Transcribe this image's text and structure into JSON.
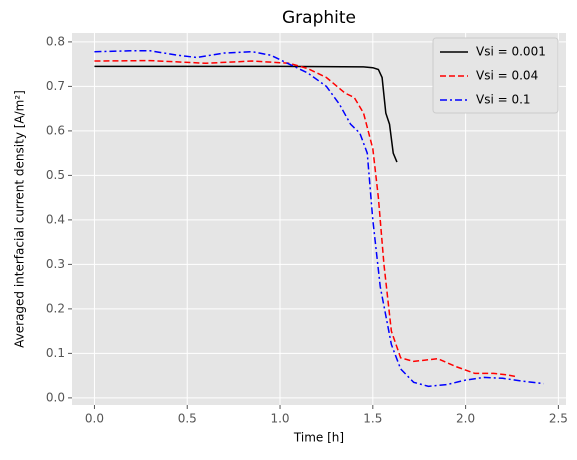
{
  "chart_data": {
    "type": "line",
    "title": "Graphite",
    "x_label": "Time [h]",
    "y_label": "Averaged interfacial current density [A/m²]",
    "xlim": [
      -0.121,
      2.541
    ],
    "ylim": [
      -0.016,
      0.82
    ],
    "xticks": [
      {
        "value": 0,
        "label": "0.0"
      },
      0.5,
      {
        "value": 1,
        "label": "1.0"
      },
      1.5,
      {
        "value": 2,
        "label": "2.0"
      },
      2.5
    ],
    "yticks": [
      {
        "value": 0,
        "label": "0.0"
      },
      0.1,
      0.2,
      0.3,
      0.4,
      0.5,
      0.6,
      0.7,
      0.8
    ],
    "grid": true,
    "legend": "upper right",
    "series": [
      {
        "name": "Vsi = 0.001",
        "color": "#000000",
        "dash": "solid",
        "x": [
          0,
          0.5,
          1.0,
          1.45,
          1.5,
          1.53,
          1.55,
          1.56,
          1.57,
          1.59,
          1.61,
          1.63
        ],
        "values": [
          0.745,
          0.745,
          0.745,
          0.744,
          0.742,
          0.738,
          0.72,
          0.68,
          0.64,
          0.615,
          0.55,
          0.53
        ]
      },
      {
        "name": "Vsi = 0.04",
        "color": "#ff0000",
        "dash": "dashed",
        "x": [
          0,
          0.3,
          0.6,
          0.85,
          1.05,
          1.15,
          1.25,
          1.35,
          1.4,
          1.45,
          1.5,
          1.53,
          1.56,
          1.6,
          1.65,
          1.72,
          1.85,
          1.95,
          2.05,
          2.15,
          2.22,
          2.27
        ],
        "values": [
          0.757,
          0.758,
          0.752,
          0.757,
          0.752,
          0.74,
          0.72,
          0.685,
          0.675,
          0.64,
          0.56,
          0.45,
          0.3,
          0.15,
          0.09,
          0.082,
          0.088,
          0.07,
          0.055,
          0.055,
          0.052,
          0.048
        ]
      },
      {
        "name": "Vsi = 0.1",
        "color": "#0000ff",
        "dash": "dashdot",
        "x": [
          0,
          0.2,
          0.3,
          0.45,
          0.55,
          0.7,
          0.85,
          0.95,
          1.05,
          1.15,
          1.25,
          1.32,
          1.38,
          1.43,
          1.47,
          1.5,
          1.54,
          1.6,
          1.65,
          1.72,
          1.8,
          1.9,
          2.0,
          2.1,
          2.2,
          2.3,
          2.42
        ],
        "values": [
          0.778,
          0.78,
          0.78,
          0.77,
          0.765,
          0.775,
          0.778,
          0.77,
          0.75,
          0.73,
          0.7,
          0.66,
          0.615,
          0.595,
          0.55,
          0.4,
          0.25,
          0.12,
          0.065,
          0.035,
          0.026,
          0.03,
          0.04,
          0.046,
          0.044,
          0.038,
          0.032
        ]
      }
    ]
  }
}
